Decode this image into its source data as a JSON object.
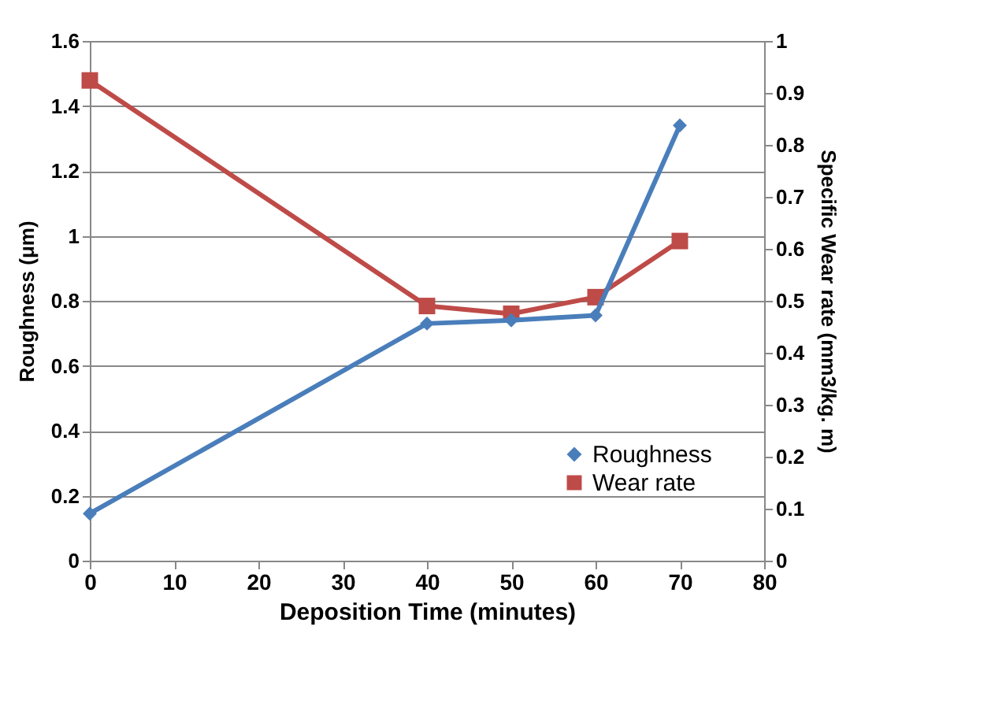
{
  "chart_data": {
    "type": "line",
    "xlabel": "Deposition Time (minutes)",
    "ylabel": "Roughness (μm)",
    "y2label": "Specific Wear rate  (mm3/kg. m)",
    "x": [
      0,
      40,
      50,
      60,
      70
    ],
    "xlim": [
      0,
      80
    ],
    "xticks": [
      0,
      10,
      20,
      30,
      40,
      50,
      60,
      70,
      80
    ],
    "ylim": [
      0,
      1.6
    ],
    "yticks": [
      0,
      0.2,
      0.4,
      0.6,
      0.8,
      1,
      1.2,
      1.4,
      1.6
    ],
    "y2lim": [
      0,
      1
    ],
    "y2ticks": [
      0,
      0.1,
      0.2,
      0.3,
      0.4,
      0.5,
      0.6,
      0.7,
      0.8,
      0.9,
      1
    ],
    "grid": "y",
    "legend": "bottom right",
    "line_style": "solid",
    "series": [
      {
        "name": "Roughness",
        "color": "#4a7ebb",
        "marker": "diamond",
        "values": [
          0.145,
          0.73,
          0.74,
          0.755,
          1.34
        ]
      },
      {
        "name": "Wear rate",
        "color": "#be4b48",
        "marker": "square",
        "axis": "y2",
        "values": [
          0.924,
          0.49,
          0.475,
          0.507,
          0.615
        ]
      }
    ]
  }
}
